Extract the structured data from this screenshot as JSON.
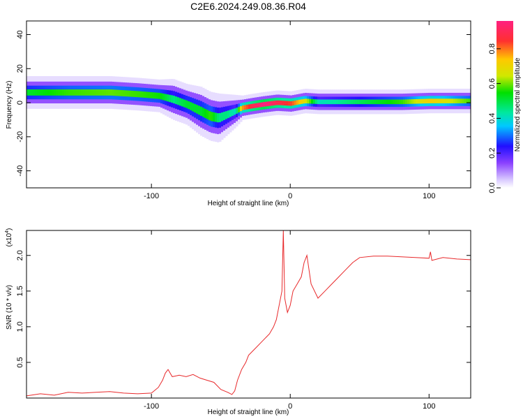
{
  "title": "C2E6.2024.249.08.36.R04",
  "colors": {
    "signal": "#e8282a",
    "axis": "#000000",
    "background": "#ffffff"
  },
  "chart_data": [
    {
      "type": "heatmap",
      "xlabel": "Height of straight line (km)",
      "ylabel": "Frequency (Hz)",
      "xlim": [
        -190,
        130
      ],
      "ylim": [
        -50,
        48
      ],
      "x_ticks": [
        -100,
        0,
        100
      ],
      "x_tick_labels": [
        "-100",
        "0",
        "100"
      ],
      "y_ticks": [
        -40,
        -20,
        0,
        20,
        40
      ],
      "y_tick_labels": [
        "-40",
        "-20",
        "0",
        "20",
        "40"
      ],
      "colorbar": {
        "label": "Normalized spectral amplitude",
        "range": [
          0,
          0.96
        ],
        "ticks": [
          0.0,
          0.2,
          0.4,
          0.6,
          0.8
        ],
        "tick_labels": [
          "0.0",
          "0.2",
          "0.4",
          "0.6",
          "0.8"
        ],
        "colormap": [
          "#ffffff",
          "#d8c8ff",
          "#8a40ff",
          "#2010ff",
          "#00c8ff",
          "#00e8a0",
          "#00e000",
          "#d0e800",
          "#ffc800",
          "#ff3030",
          "#ff2080"
        ]
      },
      "ridge": {
        "x": [
          -190,
          -160,
          -130,
          -110,
          -95,
          -85,
          -75,
          -65,
          -58,
          -52,
          -46,
          -40,
          -35,
          -28,
          -20,
          -10,
          0,
          10,
          20,
          40,
          60,
          80,
          100,
          130
        ],
        "y": [
          6,
          6,
          6,
          5,
          4,
          2,
          -1,
          -5,
          -8,
          -9,
          -7,
          -5,
          -3,
          -2,
          -1,
          0,
          -0.5,
          1,
          0.5,
          0.5,
          0.5,
          0.5,
          1,
          1
        ],
        "amplitude": [
          0.55,
          0.6,
          0.62,
          0.6,
          0.58,
          0.5,
          0.55,
          0.55,
          0.6,
          0.5,
          0.5,
          0.45,
          0.8,
          0.9,
          0.96,
          0.9,
          0.85,
          0.7,
          0.45,
          0.5,
          0.55,
          0.6,
          0.75,
          0.6
        ],
        "width_hz": [
          4,
          4,
          4,
          4,
          4,
          5,
          5,
          6,
          6,
          6,
          5,
          4,
          3,
          3,
          3,
          3,
          3,
          3,
          3,
          3,
          3,
          3,
          3,
          3
        ]
      }
    },
    {
      "type": "line",
      "xlabel": "Height of straight line (km)",
      "ylabel": "SNR (10 * v/v)",
      "y_multiplier": "(x10",
      "y_multiplier_exp": "4",
      "y_multiplier_close": ")",
      "xlim": [
        -190,
        130
      ],
      "ylim": [
        0,
        23500
      ],
      "x_ticks": [
        -100,
        0,
        100
      ],
      "x_tick_labels": [
        "-100",
        "0",
        "100"
      ],
      "y_ticks": [
        5000,
        10000,
        15000,
        20000
      ],
      "y_tick_labels": [
        "0.5",
        "1.0",
        "1.5",
        "2.0"
      ],
      "series": [
        {
          "x": [
            -190,
            -180,
            -170,
            -160,
            -150,
            -140,
            -130,
            -120,
            -110,
            -100,
            -95,
            -92,
            -90,
            -88,
            -85,
            -80,
            -75,
            -70,
            -65,
            -60,
            -55,
            -50,
            -45,
            -42,
            -40,
            -38,
            -35,
            -32,
            -30,
            -25,
            -20,
            -15,
            -12,
            -10,
            -8,
            -6,
            -5,
            -4,
            -2,
            0,
            2,
            5,
            8,
            10,
            12,
            15,
            20,
            25,
            30,
            35,
            40,
            45,
            50,
            60,
            70,
            80,
            90,
            100,
            101,
            102,
            110,
            120,
            130
          ],
          "y": [
            300,
            600,
            400,
            800,
            700,
            800,
            900,
            700,
            600,
            700,
            1500,
            2500,
            3500,
            4000,
            3000,
            3200,
            3000,
            3300,
            2800,
            2500,
            2200,
            1200,
            800,
            500,
            1000,
            2500,
            4000,
            5000,
            6000,
            7000,
            8000,
            9000,
            10000,
            11000,
            13000,
            15000,
            23500,
            14000,
            12000,
            13000,
            15000,
            16000,
            17000,
            19000,
            20000,
            16000,
            14000,
            15000,
            16000,
            17000,
            18000,
            19000,
            19700,
            19900,
            19900,
            19800,
            19700,
            19600,
            20500,
            19300,
            19700,
            19500,
            19400
          ]
        }
      ]
    }
  ]
}
